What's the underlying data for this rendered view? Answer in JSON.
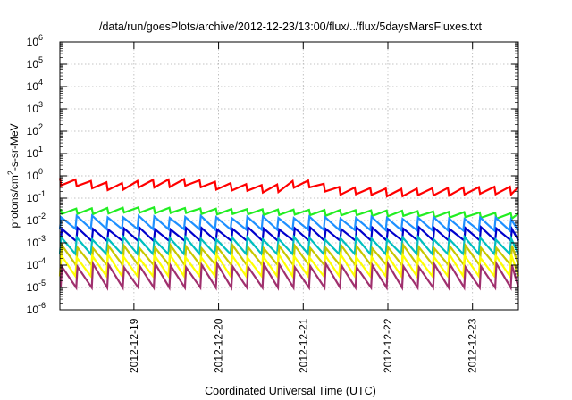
{
  "chart_data": {
    "type": "line",
    "title": "/data/run/goesPlots/archive/2012-12-23/13:00/flux/../flux/5daysMarsFluxes.txt",
    "xlabel": "Coordinated Universal Time (UTC)",
    "ylabel": "protons/cm²-s-sr-MeV",
    "y_scale": "log",
    "ylim": [
      1e-06,
      1000000.0
    ],
    "y_tick_exponents": [
      -6,
      -5,
      -4,
      -3,
      -2,
      -1,
      0,
      1,
      2,
      3,
      4,
      5,
      6
    ],
    "xlim": [
      "2012-12-18 03:00",
      "2012-12-23 13:00"
    ],
    "x_ticks": [
      "2012-12-19",
      "2012-12-20",
      "2012-12-21",
      "2012-12-22",
      "2012-12-23"
    ],
    "grid": true,
    "sawtooth_period_hours": 4.4,
    "series": [
      {
        "color": "#ff0000",
        "baseline": [
          [
            0,
            0.55
          ],
          [
            0.7,
            0.32
          ],
          [
            1,
            0.45
          ],
          [
            1.5,
            0.5
          ],
          [
            2,
            0.33
          ],
          [
            2.5,
            0.25
          ],
          [
            2.85,
            0.5
          ],
          [
            3.3,
            0.22
          ],
          [
            4,
            0.18
          ],
          [
            5.25,
            0.23
          ],
          [
            5.42,
            0.22
          ]
        ],
        "amplitude": 0.45
      },
      {
        "color": "#22ee22",
        "baseline": [
          [
            0,
            0.025
          ],
          [
            1,
            0.03
          ],
          [
            2,
            0.025
          ],
          [
            3,
            0.023
          ],
          [
            4,
            0.021
          ],
          [
            5.42,
            0.016
          ]
        ],
        "amplitude": 0.55
      },
      {
        "color": "#1e90ff",
        "baseline": [
          [
            0,
            0.008
          ],
          [
            5.42,
            0.0065
          ]
        ],
        "amplitude": 4.0
      },
      {
        "color": "#0000cc",
        "baseline": [
          [
            0,
            0.0022
          ],
          [
            5.42,
            0.0024
          ]
        ],
        "amplitude": 4.0
      },
      {
        "color": "#00bfbf",
        "baseline": [
          [
            0,
            0.0007
          ],
          [
            5.42,
            0.0007
          ]
        ],
        "amplitude": 6.0
      },
      {
        "color": "#c8c800",
        "baseline": [
          [
            0,
            0.00025
          ],
          [
            5.42,
            0.00025
          ]
        ],
        "amplitude": 8.0
      },
      {
        "color": "#ffff00",
        "baseline": [
          [
            0,
            9e-05
          ],
          [
            5.42,
            9e-05
          ]
        ],
        "amplitude": 10.0
      },
      {
        "color": "#a0306e",
        "baseline": [
          [
            0,
            3e-05
          ],
          [
            5.42,
            3e-05
          ]
        ],
        "amplitude": 12.0
      }
    ]
  }
}
